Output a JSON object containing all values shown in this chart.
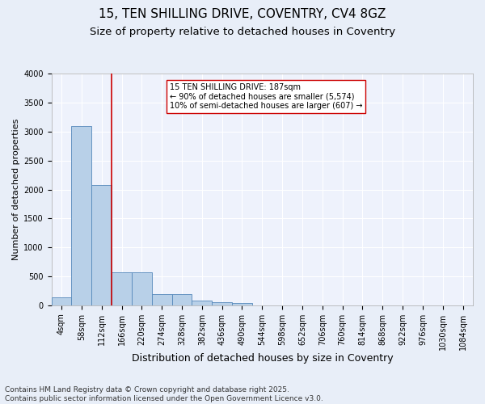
{
  "title": "15, TEN SHILLING DRIVE, COVENTRY, CV4 8GZ",
  "subtitle": "Size of property relative to detached houses in Coventry",
  "xlabel": "Distribution of detached houses by size in Coventry",
  "ylabel": "Number of detached properties",
  "bar_values": [
    140,
    3100,
    2080,
    575,
    575,
    195,
    195,
    75,
    55,
    45,
    0,
    0,
    0,
    0,
    0,
    0,
    0,
    0,
    0,
    0,
    0
  ],
  "bar_labels": [
    "4sqm",
    "58sqm",
    "112sqm",
    "166sqm",
    "220sqm",
    "274sqm",
    "328sqm",
    "382sqm",
    "436sqm",
    "490sqm",
    "544sqm",
    "598sqm",
    "652sqm",
    "706sqm",
    "760sqm",
    "814sqm",
    "868sqm",
    "922sqm",
    "976sqm",
    "1030sqm",
    "1084sqm"
  ],
  "bar_color": "#b8d0e8",
  "bar_edge_color": "#5588bb",
  "bar_width": 1.0,
  "vline_x_index": 3,
  "vline_color": "#cc0000",
  "annotation_text": "15 TEN SHILLING DRIVE: 187sqm\n← 90% of detached houses are smaller (5,574)\n10% of semi-detached houses are larger (607) →",
  "annotation_box_color": "#ffffff",
  "annotation_box_edge": "#cc0000",
  "ylim": [
    0,
    4000
  ],
  "yticks": [
    0,
    500,
    1000,
    1500,
    2000,
    2500,
    3000,
    3500,
    4000
  ],
  "bg_color": "#e8eef8",
  "plot_bg_color": "#eef2fc",
  "grid_color": "#ffffff",
  "footer": "Contains HM Land Registry data © Crown copyright and database right 2025.\nContains public sector information licensed under the Open Government Licence v3.0.",
  "title_fontsize": 11,
  "subtitle_fontsize": 9.5,
  "xlabel_fontsize": 9,
  "ylabel_fontsize": 8,
  "tick_fontsize": 7,
  "footer_fontsize": 6.5,
  "annot_fontsize": 7
}
